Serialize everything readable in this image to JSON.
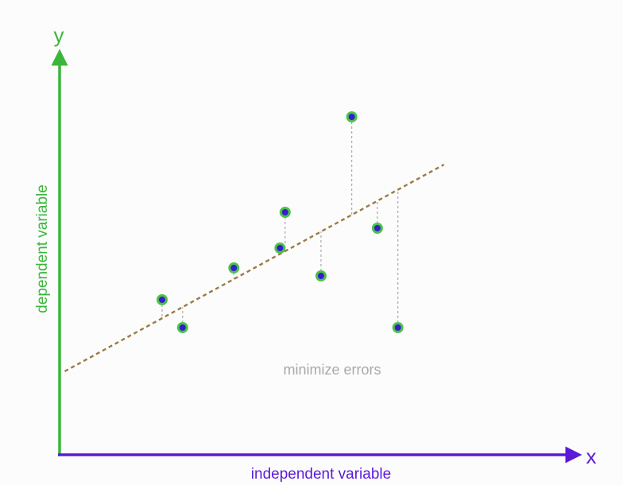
{
  "diagram": {
    "axis_label_y": "y",
    "axis_label_x": "x",
    "y_axis_title": "dependent variable",
    "x_axis_title": "independent variable",
    "annotation": "minimize errors"
  },
  "chart_data": {
    "type": "scatter",
    "x_axis": {
      "label": "independent variable",
      "arrow_label": "x"
    },
    "y_axis": {
      "label": "dependent variable",
      "arrow_label": "y"
    },
    "xlim": [
      0,
      100
    ],
    "ylim": [
      0,
      100
    ],
    "points": [
      {
        "x": 20,
        "y": 39
      },
      {
        "x": 24,
        "y": 32
      },
      {
        "x": 34,
        "y": 47
      },
      {
        "x": 43,
        "y": 52
      },
      {
        "x": 44,
        "y": 61
      },
      {
        "x": 51,
        "y": 45
      },
      {
        "x": 57,
        "y": 85
      },
      {
        "x": 62,
        "y": 57
      },
      {
        "x": 66,
        "y": 32
      }
    ],
    "fit_line": {
      "x": [
        1,
        75
      ],
      "y": [
        21,
        73
      ]
    },
    "annotation": "minimize errors",
    "grid": false,
    "colors": {
      "y_axis": "#3cb53c",
      "x_axis": "#5a1bd8",
      "fit_line": "#9b7a45",
      "point_fill": "#3320c8",
      "point_ring": "#4fc04f",
      "residual": "#aaaaaa",
      "annotation": "#a9a9a9"
    }
  }
}
